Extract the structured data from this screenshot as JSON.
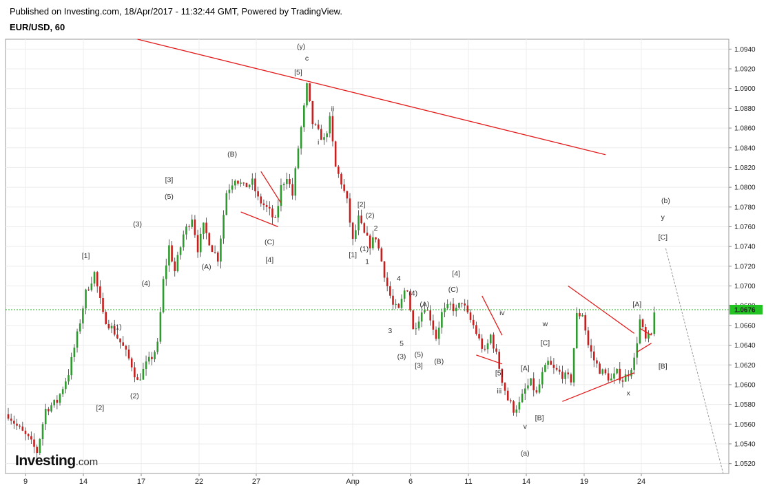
{
  "header": {
    "published": "Published on Investing.com, 18/Apr/2017 - 11:32:44 GMT, Powered by TradingView.",
    "symbol": "EUR/USD, 60"
  },
  "logo": {
    "main": "Investing",
    "suffix": ".com"
  },
  "colors": {
    "up": "#2e9b2e",
    "down": "#c81e1e",
    "trend": "#e31b1b",
    "price_line": "#20b020",
    "grid": "#ececec",
    "projection": "#999999"
  },
  "chart_data": {
    "type": "candlestick",
    "title": "EUR/USD, 60",
    "x_ticks": [
      "9",
      "14",
      "17",
      "22",
      "27",
      "Апр",
      "6",
      "11",
      "14",
      "19",
      "24"
    ],
    "y_ticks": [
      "1.0940",
      "1.0920",
      "1.0900",
      "1.0880",
      "1.0860",
      "1.0840",
      "1.0820",
      "1.0800",
      "1.0780",
      "1.0760",
      "1.0740",
      "1.0720",
      "1.0700",
      "1.0680",
      "1.0660",
      "1.0640",
      "1.0620",
      "1.0600",
      "1.0580",
      "1.0560",
      "1.0540",
      "1.0520"
    ],
    "ylim": [
      1.051,
      1.095
    ],
    "current_price": 1.0676,
    "current_price_label": "1.0676",
    "price_path": [
      {
        "t": 0,
        "p": 1.057
      },
      {
        "t": 3,
        "p": 1.0558
      },
      {
        "t": 7,
        "p": 1.0545
      },
      {
        "t": 10,
        "p": 1.0532
      },
      {
        "t": 13,
        "p": 1.0575
      },
      {
        "t": 17,
        "p": 1.0583
      },
      {
        "t": 21,
        "p": 1.0612
      },
      {
        "t": 24,
        "p": 1.065
      },
      {
        "t": 27,
        "p": 1.0693
      },
      {
        "t": 30,
        "p": 1.0713
      },
      {
        "t": 33,
        "p": 1.067
      },
      {
        "t": 37,
        "p": 1.0653
      },
      {
        "t": 40,
        "p": 1.0638
      },
      {
        "t": 43,
        "p": 1.062
      },
      {
        "t": 45,
        "p": 1.0603
      },
      {
        "t": 48,
        "p": 1.062
      },
      {
        "t": 50,
        "p": 1.0628
      },
      {
        "t": 52,
        "p": 1.064
      },
      {
        "t": 54,
        "p": 1.0705
      },
      {
        "t": 56,
        "p": 1.074
      },
      {
        "t": 58,
        "p": 1.0715
      },
      {
        "t": 61,
        "p": 1.0752
      },
      {
        "t": 64,
        "p": 1.077
      },
      {
        "t": 66,
        "p": 1.0738
      },
      {
        "t": 68,
        "p": 1.076
      },
      {
        "t": 71,
        "p": 1.0738
      },
      {
        "t": 73,
        "p": 1.0728
      },
      {
        "t": 76,
        "p": 1.0795
      },
      {
        "t": 79,
        "p": 1.081
      },
      {
        "t": 82,
        "p": 1.08
      },
      {
        "t": 85,
        "p": 1.0805
      },
      {
        "t": 87,
        "p": 1.0788
      },
      {
        "t": 89,
        "p": 1.0782
      },
      {
        "t": 91,
        "p": 1.0775
      },
      {
        "t": 93,
        "p": 1.0765
      },
      {
        "t": 95,
        "p": 1.08
      },
      {
        "t": 97,
        "p": 1.0812
      },
      {
        "t": 99,
        "p": 1.0792
      },
      {
        "t": 101,
        "p": 1.084
      },
      {
        "t": 103,
        "p": 1.088
      },
      {
        "t": 104,
        "p": 1.0902
      },
      {
        "t": 106,
        "p": 1.0865
      },
      {
        "t": 108,
        "p": 1.0855
      },
      {
        "t": 110,
        "p": 1.0848
      },
      {
        "t": 112,
        "p": 1.0868
      },
      {
        "t": 114,
        "p": 1.082
      },
      {
        "t": 116,
        "p": 1.0805
      },
      {
        "t": 118,
        "p": 1.0785
      },
      {
        "t": 120,
        "p": 1.0745
      },
      {
        "t": 122,
        "p": 1.0768
      },
      {
        "t": 124,
        "p": 1.0752
      },
      {
        "t": 126,
        "p": 1.0742
      },
      {
        "t": 128,
        "p": 1.075
      },
      {
        "t": 130,
        "p": 1.0725
      },
      {
        "t": 132,
        "p": 1.07
      },
      {
        "t": 134,
        "p": 1.068
      },
      {
        "t": 136,
        "p": 1.0675
      },
      {
        "t": 138,
        "p": 1.0695
      },
      {
        "t": 139,
        "p": 1.0698
      },
      {
        "t": 141,
        "p": 1.0655
      },
      {
        "t": 143,
        "p": 1.0668
      },
      {
        "t": 145,
        "p": 1.068
      },
      {
        "t": 147,
        "p": 1.0668
      },
      {
        "t": 149,
        "p": 1.0648
      },
      {
        "t": 151,
        "p": 1.0672
      },
      {
        "t": 154,
        "p": 1.068
      },
      {
        "t": 156,
        "p": 1.0675
      },
      {
        "t": 158,
        "p": 1.0685
      },
      {
        "t": 160,
        "p": 1.067
      },
      {
        "t": 162,
        "p": 1.066
      },
      {
        "t": 164,
        "p": 1.0645
      },
      {
        "t": 166,
        "p": 1.0632
      },
      {
        "t": 168,
        "p": 1.065
      },
      {
        "t": 170,
        "p": 1.063
      },
      {
        "t": 172,
        "p": 1.0605
      },
      {
        "t": 174,
        "p": 1.0585
      },
      {
        "t": 176,
        "p": 1.0575
      },
      {
        "t": 178,
        "p": 1.058
      },
      {
        "t": 180,
        "p": 1.0595
      },
      {
        "t": 182,
        "p": 1.0602
      },
      {
        "t": 184,
        "p": 1.059
      },
      {
        "t": 186,
        "p": 1.061
      },
      {
        "t": 188,
        "p": 1.0622
      },
      {
        "t": 190,
        "p": 1.0615
      },
      {
        "t": 192,
        "p": 1.0612
      },
      {
        "t": 194,
        "p": 1.0608
      },
      {
        "t": 196,
        "p": 1.0605
      },
      {
        "t": 198,
        "p": 1.067
      },
      {
        "t": 200,
        "p": 1.0672
      },
      {
        "t": 202,
        "p": 1.064
      },
      {
        "t": 204,
        "p": 1.0625
      },
      {
        "t": 206,
        "p": 1.0615
      },
      {
        "t": 208,
        "p": 1.061
      },
      {
        "t": 210,
        "p": 1.0605
      },
      {
        "t": 212,
        "p": 1.0612
      },
      {
        "t": 214,
        "p": 1.0605
      },
      {
        "t": 216,
        "p": 1.0612
      },
      {
        "t": 218,
        "p": 1.0625
      },
      {
        "t": 220,
        "p": 1.0665
      },
      {
        "t": 222,
        "p": 1.0645
      },
      {
        "t": 224,
        "p": 1.065
      },
      {
        "t": 225,
        "p": 1.0676
      }
    ],
    "annotations": [
      {
        "text": "[1]",
        "t": 27,
        "p": 1.0731
      },
      {
        "text": "(1)",
        "t": 38,
        "p": 1.0659
      },
      {
        "text": "[2]",
        "t": 32,
        "p": 1.0577
      },
      {
        "text": "(2)",
        "t": 44,
        "p": 1.0589
      },
      {
        "text": "(3)",
        "t": 45,
        "p": 1.0763
      },
      {
        "text": "(4)",
        "t": 48,
        "p": 1.0703
      },
      {
        "text": "[3]",
        "t": 56,
        "p": 1.0808
      },
      {
        "text": "(5)",
        "t": 56,
        "p": 1.0791
      },
      {
        "text": "(A)",
        "t": 69,
        "p": 1.072
      },
      {
        "text": "(B)",
        "t": 78,
        "p": 1.0834
      },
      {
        "text": "(C)",
        "t": 91,
        "p": 1.0745
      },
      {
        "text": "[4]",
        "t": 91,
        "p": 1.0727
      },
      {
        "text": "(y)",
        "t": 102,
        "p": 1.0943
      },
      {
        "text": "c",
        "t": 104,
        "p": 1.0931
      },
      {
        "text": "[5]",
        "t": 101,
        "p": 1.0917
      },
      {
        "text": "ii",
        "t": 113,
        "p": 1.088
      },
      {
        "text": "i",
        "t": 108,
        "p": 1.0846
      },
      {
        "text": "[2]",
        "t": 123,
        "p": 1.0783
      },
      {
        "text": "(2)",
        "t": 126,
        "p": 1.0772
      },
      {
        "text": "2",
        "t": 128,
        "p": 1.0759
      },
      {
        "text": "(1)",
        "t": 124,
        "p": 1.0738
      },
      {
        "text": "[1]",
        "t": 120,
        "p": 1.0732
      },
      {
        "text": "1",
        "t": 125,
        "p": 1.0725
      },
      {
        "text": "4",
        "t": 136,
        "p": 1.0708
      },
      {
        "text": "(4)",
        "t": 141,
        "p": 1.0693
      },
      {
        "text": "(A)",
        "t": 145,
        "p": 1.0682
      },
      {
        "text": "[4]",
        "t": 156,
        "p": 1.0713
      },
      {
        "text": "(C)",
        "t": 155,
        "p": 1.0697
      },
      {
        "text": "iv",
        "t": 172,
        "p": 1.0673
      },
      {
        "text": "3",
        "t": 133,
        "p": 1.0655
      },
      {
        "text": "5",
        "t": 137,
        "p": 1.0642
      },
      {
        "text": "(3)",
        "t": 137,
        "p": 1.0629
      },
      {
        "text": "(5)",
        "t": 143,
        "p": 1.0631
      },
      {
        "text": "[3]",
        "t": 143,
        "p": 1.062
      },
      {
        "text": "(B)",
        "t": 150,
        "p": 1.0624
      },
      {
        "text": "[5]",
        "t": 171,
        "p": 1.0612
      },
      {
        "text": "iii",
        "t": 171,
        "p": 1.0594
      },
      {
        "text": "[A]",
        "t": 180,
        "p": 1.0617
      },
      {
        "text": "w",
        "t": 187,
        "p": 1.0662
      },
      {
        "text": "[C]",
        "t": 187,
        "p": 1.0643
      },
      {
        "text": "[B]",
        "t": 185,
        "p": 1.0567
      },
      {
        "text": "v",
        "t": 180,
        "p": 1.0558
      },
      {
        "text": "(a)",
        "t": 180,
        "p": 1.0531
      },
      {
        "text": "[A]",
        "t": 219,
        "p": 1.0682
      },
      {
        "text": "x",
        "t": 216,
        "p": 1.0592
      },
      {
        "text": "[B]",
        "t": 228,
        "p": 1.0619
      },
      {
        "text": "(b)",
        "t": 229,
        "p": 1.0787
      },
      {
        "text": "y",
        "t": 228,
        "p": 1.077
      },
      {
        "text": "[C]",
        "t": 228,
        "p": 1.075
      }
    ],
    "trendlines": [
      {
        "t1": 45,
        "p1": 1.095,
        "t2": 208,
        "p2": 1.0833
      },
      {
        "t1": 81,
        "p1": 1.0775,
        "t2": 94,
        "p2": 1.076
      },
      {
        "t1": 88,
        "p1": 1.0816,
        "t2": 95,
        "p2": 1.0784
      },
      {
        "t1": 163,
        "p1": 1.063,
        "t2": 172,
        "p2": 1.0621
      },
      {
        "t1": 165,
        "p1": 1.069,
        "t2": 172,
        "p2": 1.065
      },
      {
        "t1": 195,
        "p1": 1.07,
        "t2": 218,
        "p2": 1.0652
      },
      {
        "t1": 193,
        "p1": 1.0583,
        "t2": 218,
        "p2": 1.0612
      },
      {
        "t1": 220,
        "p1": 1.0657,
        "t2": 224,
        "p2": 1.065
      },
      {
        "t1": 219,
        "p1": 1.0633,
        "t2": 224,
        "p2": 1.0642
      }
    ],
    "projection": {
      "t1": 229,
      "p1": 1.0738,
      "t2": 249,
      "p2": 1.051
    },
    "grid": true
  }
}
